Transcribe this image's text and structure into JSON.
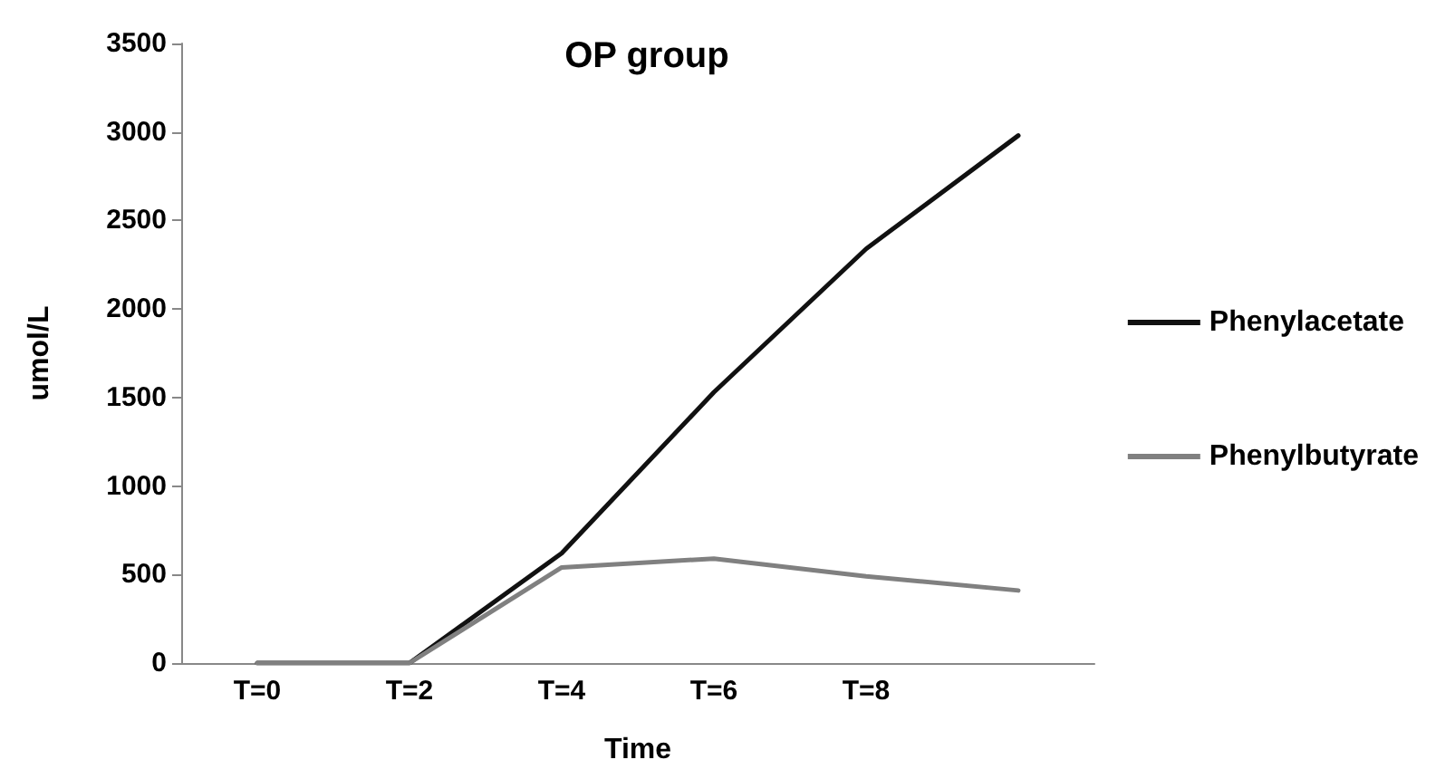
{
  "chart_data": {
    "type": "line",
    "title": "OP group",
    "xlabel": "Time",
    "ylabel": "umol/L",
    "categories": [
      "T=0",
      "T=2",
      "T=4",
      "T=6",
      "T=8",
      null
    ],
    "series": [
      {
        "name": "Phenylacetate",
        "color": "#111111",
        "values": [
          0,
          0,
          620,
          1530,
          2340,
          2980
        ]
      },
      {
        "name": "Phenylbutyrate",
        "color": "#808080",
        "values": [
          0,
          0,
          540,
          590,
          490,
          410
        ]
      }
    ],
    "ylim": [
      0,
      3500
    ],
    "yticks": [
      0,
      500,
      1000,
      1500,
      2000,
      2500,
      3000,
      3500
    ],
    "grid": false,
    "legend": "right",
    "marker": "none",
    "line_style": "solid"
  }
}
